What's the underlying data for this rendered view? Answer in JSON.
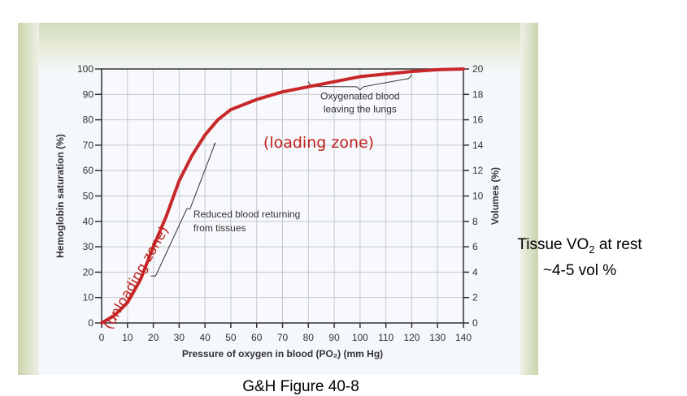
{
  "chart_data": {
    "type": "line",
    "xlabel": "Pressure of oxygen in blood (PO₂) (mm Hg)",
    "ylabel": "Hemoglobin saturation (%)",
    "y2label": "Volumes (%)",
    "xlim": [
      0,
      140
    ],
    "ylim": [
      0,
      100
    ],
    "y2lim": [
      0,
      20
    ],
    "xticks": [
      0,
      10,
      20,
      30,
      40,
      50,
      60,
      70,
      80,
      90,
      100,
      110,
      120,
      130,
      140
    ],
    "yticks": [
      0,
      10,
      20,
      30,
      40,
      50,
      60,
      70,
      80,
      90,
      100
    ],
    "y2ticks": [
      0,
      2,
      4,
      6,
      8,
      10,
      12,
      14,
      16,
      18,
      20
    ],
    "grid": true,
    "series": [
      {
        "color": "#c8282a",
        "x": [
          0,
          5,
          10,
          15,
          20,
          25,
          30,
          35,
          40,
          45,
          50,
          60,
          70,
          80,
          90,
          100,
          110,
          120,
          130,
          140
        ],
        "y": [
          0,
          3,
          8,
          17,
          30,
          42,
          56,
          66,
          74,
          80,
          84,
          88,
          91,
          93,
          95,
          97,
          98,
          99,
          99.7,
          100
        ]
      }
    ],
    "annotations": [
      {
        "text": "Oxygenated blood leaving the lungs",
        "lines": [
          "Oxygenated blood",
          "leaving the lungs"
        ],
        "range_x": [
          80,
          120
        ]
      },
      {
        "text": "Reduced blood returning from tissues",
        "lines": [
          "Reduced blood returning",
          "from tissues"
        ],
        "range_x": [
          20,
          45
        ]
      },
      {
        "text": "(loading zone)",
        "color": "#c0201c"
      },
      {
        "text": "(unloading zone)",
        "color": "#c0201c"
      }
    ]
  },
  "side_note": {
    "line1_a": "Tissue VO",
    "line1_sub": "2",
    "line1_b": " at  rest",
    "line2": "~4-5 vol %"
  },
  "caption": "G&H Figure 40-8"
}
